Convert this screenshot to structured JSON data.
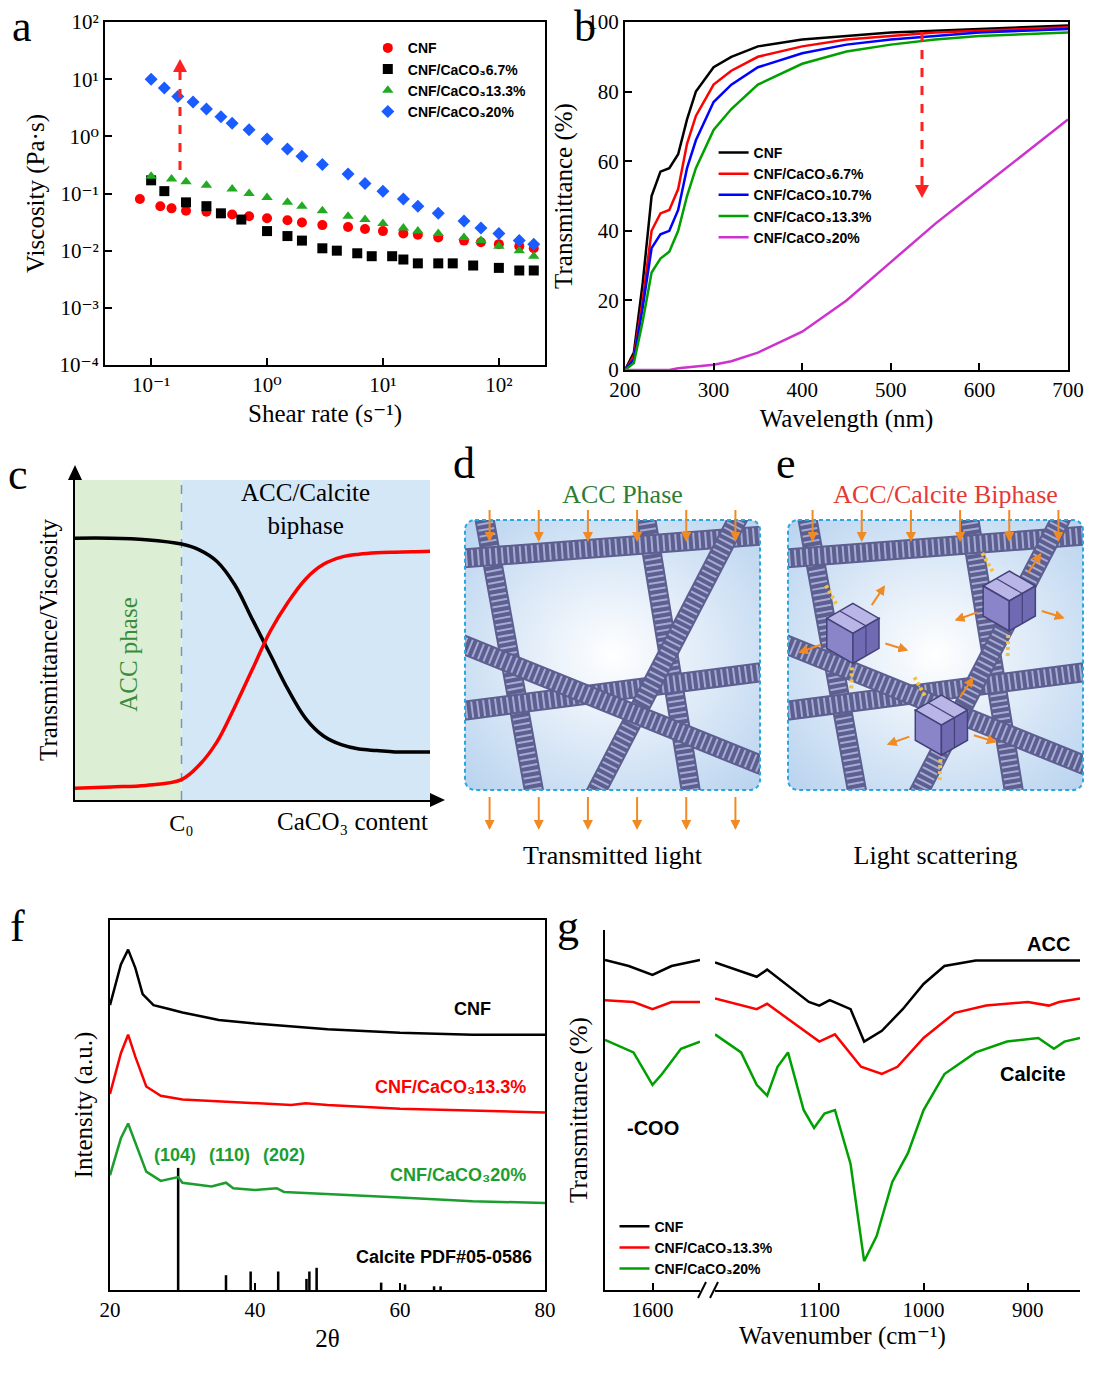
{
  "chart_data": [
    {
      "panel": "a",
      "type": "scatter",
      "xlabel": "Shear rate (s⁻¹)",
      "ylabel": "Viscosity (Pa·s)",
      "log": true,
      "grid": false,
      "legend": "upper right",
      "xlim": [
        0.04,
        250
      ],
      "ylim": [
        0.0001,
        100
      ],
      "xticks": [
        {
          "value": 0.1,
          "label": "10⁻¹"
        },
        {
          "value": 1,
          "label": "10⁰"
        },
        {
          "value": 10,
          "label": "10¹"
        },
        {
          "value": 100,
          "label": "10²"
        }
      ],
      "yticks": [
        {
          "value": 0.0001,
          "label": "10⁻⁴"
        },
        {
          "value": 0.001,
          "label": "10⁻³"
        },
        {
          "value": 0.01,
          "label": "10⁻²"
        },
        {
          "value": 0.1,
          "label": "10⁻¹"
        },
        {
          "value": 1,
          "label": "10⁰"
        },
        {
          "value": 10,
          "label": "10¹"
        },
        {
          "value": 100,
          "label": "10²"
        }
      ],
      "series": [
        {
          "name": "CNF",
          "color": "#ff0000",
          "marker": "circle",
          "x": [
            0.08,
            0.12,
            0.15,
            0.2,
            0.3,
            0.5,
            0.7,
            1,
            1.5,
            2,
            3,
            5,
            7,
            10,
            15,
            20,
            30,
            50,
            70,
            100,
            150,
            200
          ],
          "values": [
            0.08,
            0.06,
            0.055,
            0.05,
            0.048,
            0.043,
            0.04,
            0.037,
            0.034,
            0.031,
            0.028,
            0.026,
            0.024,
            0.022,
            0.02,
            0.019,
            0.017,
            0.015,
            0.014,
            0.013,
            0.012,
            0.011
          ]
        },
        {
          "name": "CNF/CaCO₃6.7%",
          "color": "#000000",
          "marker": "square",
          "x": [
            0.1,
            0.13,
            0.2,
            0.3,
            0.4,
            0.6,
            1,
            1.5,
            2,
            3,
            4,
            6,
            8,
            12,
            15,
            20,
            30,
            40,
            60,
            100,
            150,
            200
          ],
          "values": [
            0.17,
            0.11,
            0.07,
            0.06,
            0.045,
            0.035,
            0.022,
            0.018,
            0.015,
            0.011,
            0.01,
            0.009,
            0.008,
            0.008,
            0.007,
            0.006,
            0.006,
            0.006,
            0.0055,
            0.005,
            0.0045,
            0.0045
          ]
        },
        {
          "name": "CNF/CaCO₃13.3%",
          "color": "#22aa22",
          "marker": "triangle",
          "x": [
            0.1,
            0.15,
            0.2,
            0.3,
            0.5,
            0.7,
            1,
            1.5,
            2,
            3,
            5,
            7,
            10,
            15,
            20,
            30,
            50,
            70,
            100,
            150,
            200
          ],
          "values": [
            0.2,
            0.18,
            0.16,
            0.14,
            0.12,
            0.1,
            0.085,
            0.07,
            0.06,
            0.05,
            0.04,
            0.035,
            0.03,
            0.025,
            0.022,
            0.02,
            0.017,
            0.015,
            0.012,
            0.01,
            0.008
          ]
        },
        {
          "name": "CNF/CaCO₃20%",
          "color": "#1a5cff",
          "marker": "diamond",
          "x": [
            0.1,
            0.13,
            0.17,
            0.23,
            0.3,
            0.4,
            0.5,
            0.7,
            1,
            1.5,
            2,
            3,
            5,
            7,
            10,
            15,
            20,
            30,
            50,
            70,
            100,
            150,
            200
          ],
          "values": [
            10,
            7,
            5,
            4,
            3,
            2.2,
            1.7,
            1.3,
            0.9,
            0.6,
            0.45,
            0.32,
            0.22,
            0.15,
            0.11,
            0.08,
            0.06,
            0.045,
            0.033,
            0.025,
            0.02,
            0.015,
            0.013
          ]
        }
      ]
    },
    {
      "panel": "b",
      "type": "line",
      "xlabel": "Wavelength (nm)",
      "ylabel": "Transmittance (%)",
      "grid": false,
      "legend": "center left",
      "xlim": [
        200,
        700
      ],
      "ylim": [
        0,
        100
      ],
      "xticks": [
        200,
        300,
        400,
        500,
        600,
        700
      ],
      "yticks": [
        0,
        20,
        40,
        60,
        80,
        100
      ],
      "x": [
        200,
        210,
        220,
        230,
        240,
        250,
        260,
        270,
        280,
        300,
        320,
        350,
        400,
        450,
        500,
        550,
        600,
        650,
        700
      ],
      "series": [
        {
          "name": "CNF",
          "color": "#000000",
          "values": [
            0,
            5,
            25,
            50,
            57,
            58,
            62,
            72,
            80,
            87,
            90,
            93,
            95,
            96,
            97,
            97.5,
            98,
            98.5,
            99
          ]
        },
        {
          "name": "CNF/CaCO₃6.7%",
          "color": "#ff0000",
          "values": [
            0,
            4,
            20,
            40,
            45,
            46,
            52,
            65,
            73,
            82,
            86,
            90,
            93,
            95,
            96,
            97,
            97.5,
            98,
            98.5
          ]
        },
        {
          "name": "CNF/CaCO₃10.7%",
          "color": "#0000ff",
          "values": [
            0,
            3,
            18,
            35,
            39,
            40,
            46,
            58,
            66,
            77,
            82,
            87,
            91,
            93.5,
            95,
            96,
            97,
            97.5,
            98
          ]
        },
        {
          "name": "CNF/CaCO₃13.3%",
          "color": "#00a000",
          "values": [
            0,
            2,
            14,
            28,
            32,
            34,
            40,
            50,
            58,
            69,
            75,
            82,
            88,
            91.5,
            93.5,
            95,
            96,
            96.5,
            97
          ]
        },
        {
          "name": "CNF/CaCO₃20%",
          "color": "#cc33cc",
          "values": [
            0,
            0,
            0,
            0,
            0,
            0,
            0.5,
            0.8,
            1,
            1.5,
            2.5,
            5,
            11,
            20,
            31,
            42,
            52,
            62,
            72
          ]
        }
      ]
    },
    {
      "panel": "c",
      "type": "line",
      "xlabel": "CaCO₃ content",
      "ylabel": "Transmittance/Viscosity",
      "grid": false,
      "tick_labels": "x",
      "xlim": [
        0,
        10
      ],
      "ylim": [
        0,
        1.1
      ],
      "xticks": [
        {
          "value": 3,
          "label": "C₀"
        }
      ],
      "x": [
        0,
        1,
        2,
        3,
        3.5,
        4,
        4.5,
        5,
        5.5,
        6,
        6.5,
        7,
        7.5,
        8,
        8.5,
        9,
        9.5,
        10
      ],
      "series": [
        {
          "color": "#000000",
          "values": [
            0.9,
            0.9,
            0.895,
            0.88,
            0.86,
            0.82,
            0.74,
            0.62,
            0.5,
            0.38,
            0.28,
            0.22,
            0.19,
            0.175,
            0.17,
            0.165,
            0.165,
            0.165
          ]
        },
        {
          "color": "#ff0000",
          "values": [
            0.04,
            0.045,
            0.05,
            0.07,
            0.12,
            0.2,
            0.32,
            0.45,
            0.58,
            0.68,
            0.76,
            0.81,
            0.835,
            0.845,
            0.85,
            0.852,
            0.853,
            0.855
          ]
        }
      ],
      "annotations": [
        {
          "text": "ACC phase",
          "x": 1.5,
          "y": 0.5,
          "color": "#3a8c3a"
        },
        {
          "text": "ACC/Calcite biphase",
          "x": 6.5,
          "y": 1.0,
          "color": "#000000"
        }
      ]
    },
    {
      "panel": "f",
      "type": "line",
      "xlabel": "2θ",
      "ylabel": "Intensity (a.u.)",
      "grid": false,
      "tick_labels": "x",
      "xlim": [
        20,
        80
      ],
      "ylim": [
        0,
        100
      ],
      "xticks": [
        20,
        40,
        60,
        80
      ],
      "series": [
        {
          "color": "#000000",
          "x": [
            20,
            21.5,
            22.5,
            23.5,
            24.5,
            26,
            28,
            30,
            35,
            40,
            50,
            60,
            70,
            80
          ],
          "values": [
            77,
            88,
            92,
            87,
            80,
            77,
            76,
            75,
            73,
            72,
            70.5,
            69.5,
            69,
            69
          ]
        },
        {
          "color": "#ff0000",
          "x": [
            20,
            21.5,
            22.5,
            23.5,
            25,
            27,
            30,
            35,
            40,
            45,
            47,
            50,
            60,
            70,
            80
          ],
          "values": [
            53,
            64,
            69,
            63,
            55,
            52.5,
            51.5,
            51,
            50.5,
            50,
            50.5,
            50,
            49,
            48.5,
            48
          ]
        },
        {
          "color": "#1b9e2f",
          "x": [
            20,
            21.5,
            22.5,
            23.5,
            25,
            27,
            29.4,
            30,
            34,
            36,
            37,
            40,
            43,
            44,
            50,
            60,
            70,
            80
          ],
          "values": [
            31,
            41,
            45,
            40,
            32,
            29.5,
            30.5,
            29,
            28,
            29,
            27.5,
            27,
            27.5,
            26.5,
            26,
            25,
            24,
            23.5
          ]
        },
        {
          "type": "stick",
          "color": "#000000",
          "x": [
            29.4,
            36.0,
            39.4,
            43.2,
            47.1,
            47.5,
            48.5,
            57.4,
            60.7,
            64.7,
            65.6
          ],
          "values": [
            33,
            4,
            5,
            5,
            3,
            5,
            6,
            2,
            1.5,
            1,
            1
          ]
        }
      ],
      "annotations": [
        {
          "text": "CNF",
          "x": 70,
          "y": 76,
          "color": "#000000"
        },
        {
          "text": "CNF/CaCO₃13.3%",
          "x": 67,
          "y": 55,
          "color": "#ff0000"
        },
        {
          "text": "CNF/CaCO₃20%",
          "x": 68,
          "y": 31,
          "color": "#1b9e2f"
        },
        {
          "text": "(104)",
          "x": 29,
          "y": 36.5,
          "color": "#1b9e2f"
        },
        {
          "text": "(110)",
          "x": 36.5,
          "y": 36.5,
          "color": "#1b9e2f"
        },
        {
          "text": "(202)",
          "x": 44,
          "y": 36.5,
          "color": "#1b9e2f"
        },
        {
          "text": "Calcite PDF#05-0586",
          "x": 66,
          "y": 9,
          "color": "#000000"
        }
      ]
    },
    {
      "panel": "g",
      "type": "line",
      "xlabel": "Wavenumber (cm⁻¹)",
      "ylabel": "Transmittance (%)",
      "grid": false,
      "tick_labels": "x",
      "legend": "lower left",
      "segments": [
        {
          "xlim": [
            1700,
            1500
          ],
          "xticks": [
            1600
          ]
        },
        {
          "xlim": [
            1200,
            850
          ],
          "xticks": [
            1100,
            1000,
            900
          ]
        }
      ],
      "ylim": [
        0,
        100
      ],
      "series": [
        {
          "name": "CNF",
          "color": "#000000",
          "x": [
            1700,
            1650,
            1600,
            1560,
            1500,
            1200,
            1170,
            1160,
            1150,
            1110,
            1100,
            1090,
            1070,
            1057,
            1040,
            1020,
            1000,
            980,
            950,
            900,
            850
          ],
          "values": [
            91.7,
            90,
            87.5,
            90,
            91.7,
            91,
            88,
            87,
            89,
            80,
            79,
            80.5,
            78,
            69,
            72,
            78,
            85,
            90,
            91.5,
            91.5,
            91.5
          ]
        },
        {
          "name": "CNF/CaCO₃13.3%",
          "color": "#ff0000",
          "x": [
            1700,
            1640,
            1600,
            1560,
            1500,
            1200,
            1160,
            1150,
            1110,
            1100,
            1085,
            1060,
            1040,
            1025,
            1000,
            970,
            940,
            900,
            880,
            870,
            850
          ],
          "values": [
            80.5,
            80,
            78,
            80,
            80,
            81,
            78,
            79.5,
            71,
            69,
            71,
            62,
            60,
            62,
            70,
            77,
            79,
            80,
            79,
            80,
            81
          ]
        },
        {
          "name": "CNF/CaCO₃20%",
          "color": "#00a000",
          "x": [
            1700,
            1640,
            1600,
            1580,
            1540,
            1500,
            1200,
            1175,
            1160,
            1150,
            1140,
            1130,
            1115,
            1105,
            1095,
            1085,
            1070,
            1057,
            1045,
            1030,
            1015,
            1000,
            980,
            950,
            920,
            890,
            875,
            865,
            850
          ],
          "values": [
            69.5,
            66,
            57,
            60,
            67,
            69,
            71,
            66,
            57,
            54,
            62,
            66,
            50,
            45,
            49,
            50,
            35,
            8,
            15,
            30,
            38,
            50,
            60,
            66,
            69,
            70,
            67,
            69,
            70
          ]
        }
      ],
      "annotations": [
        {
          "text": "-COO",
          "x": 1600,
          "y": 45,
          "color": "#000000"
        },
        {
          "text": "ACC",
          "x": 880,
          "y": 96,
          "color": "#000000"
        },
        {
          "text": "Calcite",
          "x": 895,
          "y": 60,
          "color": "#000000"
        }
      ]
    }
  ],
  "diagrams": [
    {
      "panel": "d",
      "title": "ACC Phase",
      "caption": "Transmitted light",
      "color": "#2e7d32"
    },
    {
      "panel": "e",
      "title": "ACC/Calcite Biphase",
      "caption": "Light scattering",
      "color": "#e53935"
    }
  ]
}
